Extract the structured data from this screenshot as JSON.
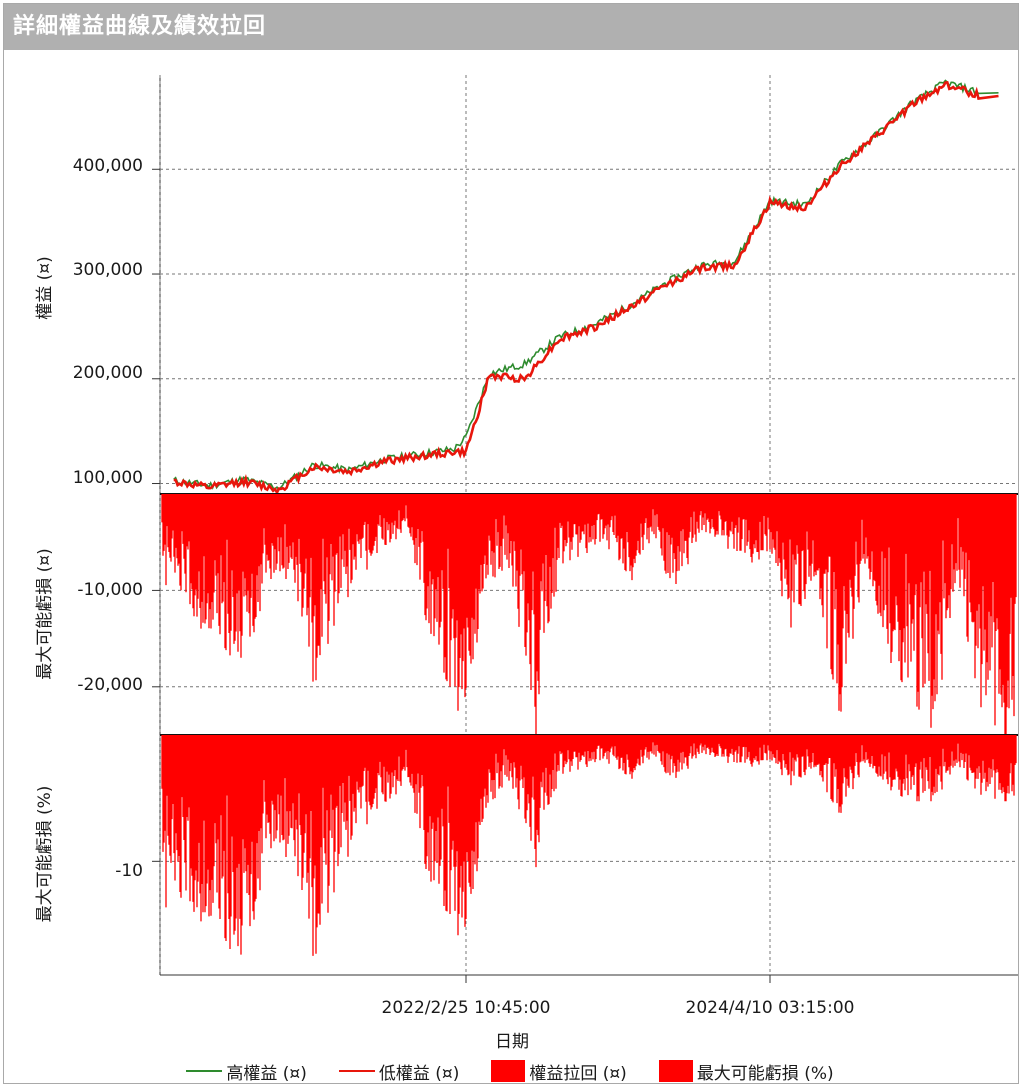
{
  "title": "詳細權益曲線及績效拉回",
  "colors": {
    "high": "#2e8b2e",
    "low": "#e8160c",
    "drawdown": "#ff0000",
    "titlebar": "#b0b0b0"
  },
  "x_axis": {
    "label": "日期",
    "ticks": [
      "2022/2/25 10:45:00",
      "2024/4/10 03:15:00"
    ]
  },
  "panels": {
    "equity": {
      "ylabel": "權益 (¤)",
      "ticks": [
        "100,000",
        "200,000",
        "300,000",
        "400,000"
      ]
    },
    "drawdown_abs": {
      "ylabel": "最大可能虧損 (¤)",
      "ticks": [
        "-10,000",
        "-20,000"
      ]
    },
    "drawdown_pct": {
      "ylabel": "最大可能虧損 (%)",
      "ticks": [
        "-10"
      ]
    }
  },
  "legend": [
    {
      "label": "高權益 (¤)",
      "kind": "line",
      "color": "#2e8b2e"
    },
    {
      "label": "低權益 (¤)",
      "kind": "line",
      "color": "#e8160c"
    },
    {
      "label": "權益拉回 (¤)",
      "kind": "box",
      "color": "#ff0000"
    },
    {
      "label": "最大可能虧損 (%)",
      "kind": "box",
      "color": "#ff0000"
    }
  ],
  "chart_data": [
    {
      "type": "line",
      "title": "詳細權益曲線及績效拉回",
      "xlabel": "日期",
      "ylabel": "權益 (¤)",
      "xlim": [
        "2020/1/1",
        "2026/1/1"
      ],
      "ylim": [
        90000,
        490000
      ],
      "x_ticks": [
        "2022/2/25 10:45:00",
        "2024/4/10 03:15:00"
      ],
      "y_ticks": [
        100000,
        200000,
        300000,
        400000
      ],
      "series": [
        {
          "name": "高權益 (¤)",
          "color": "#2e8b2e",
          "x": [
            "2020/1",
            "2020/4",
            "2020/7",
            "2020/10",
            "2021/1",
            "2021/4",
            "2021/7",
            "2021/10",
            "2022/1",
            "2022/2",
            "2022/4",
            "2022/7",
            "2022/10",
            "2023/1",
            "2023/4",
            "2023/7",
            "2023/10",
            "2024/1",
            "2024/4",
            "2024/7",
            "2024/10",
            "2025/1",
            "2025/4",
            "2025/7",
            "2025/10"
          ],
          "values": [
            103000,
            98000,
            104000,
            96000,
            118000,
            113000,
            123000,
            128000,
            133000,
            144000,
            205000,
            214000,
            240000,
            252000,
            270000,
            291000,
            308000,
            312000,
            370000,
            366000,
            405000,
            432000,
            462000,
            483000,
            473000
          ]
        },
        {
          "name": "低權益 (¤)",
          "color": "#e8160c",
          "x": [
            "2020/1",
            "2020/4",
            "2020/7",
            "2020/10",
            "2021/1",
            "2021/4",
            "2021/7",
            "2021/10",
            "2022/1",
            "2022/2",
            "2022/4",
            "2022/7",
            "2022/10",
            "2023/1",
            "2023/4",
            "2023/7",
            "2023/10",
            "2024/1",
            "2024/4",
            "2024/7",
            "2024/10",
            "2025/1",
            "2025/4",
            "2025/7",
            "2025/10"
          ],
          "values": [
            102000,
            96000,
            102000,
            94000,
            116000,
            111000,
            121000,
            126000,
            130000,
            130000,
            203000,
            200000,
            238000,
            249000,
            268000,
            289000,
            305000,
            309000,
            368000,
            363000,
            403000,
            430000,
            460000,
            481000,
            470000
          ]
        }
      ]
    },
    {
      "type": "area",
      "ylabel": "最大可能虧損 (¤)",
      "ylim": [
        -25000,
        0
      ],
      "y_ticks": [
        -10000,
        -20000
      ],
      "series": [
        {
          "name": "權益拉回 (¤)",
          "color": "#ff0000",
          "x": [
            "2020/1",
            "2020/3",
            "2020/5",
            "2020/7",
            "2020/9",
            "2020/11",
            "2021/1",
            "2021/3",
            "2021/5",
            "2021/7",
            "2021/9",
            "2021/11",
            "2022/1",
            "2022/2",
            "2022/4",
            "2022/6",
            "2022/8",
            "2022/10",
            "2022/12",
            "2023/2",
            "2023/4",
            "2023/6",
            "2023/8",
            "2023/10",
            "2023/12",
            "2024/2",
            "2024/4",
            "2024/6",
            "2024/8",
            "2024/10",
            "2024/12",
            "2025/2",
            "2025/4",
            "2025/6",
            "2025/8",
            "2025/10",
            "2025/12"
          ],
          "values": [
            -9000,
            -14000,
            -17000,
            -18500,
            -10000,
            -8000,
            -19000,
            -12000,
            -8000,
            -6000,
            -3000,
            -15000,
            -23000,
            -23500,
            -8000,
            -9000,
            -24500,
            -7000,
            -6000,
            -5000,
            -9000,
            -4000,
            -11000,
            -4000,
            -5000,
            -7000,
            -6000,
            -14000,
            -10000,
            -22000,
            -8000,
            -16000,
            -20000,
            -23500,
            -9000,
            -21000,
            -24000
          ]
        }
      ]
    },
    {
      "type": "area",
      "ylabel": "最大可能虧損 (%)",
      "ylim": [
        -19,
        0
      ],
      "y_ticks": [
        -10
      ],
      "series": [
        {
          "name": "最大可能虧損 (%)",
          "color": "#ff0000",
          "x": [
            "2020/1",
            "2020/3",
            "2020/5",
            "2020/7",
            "2020/9",
            "2020/11",
            "2021/1",
            "2021/3",
            "2021/5",
            "2021/7",
            "2021/9",
            "2021/11",
            "2022/1",
            "2022/2",
            "2022/4",
            "2022/6",
            "2022/8",
            "2022/10",
            "2022/12",
            "2023/2",
            "2023/4",
            "2023/6",
            "2023/8",
            "2023/10",
            "2023/12",
            "2024/2",
            "2024/4",
            "2024/6",
            "2024/8",
            "2024/10",
            "2024/12",
            "2025/2",
            "2025/4",
            "2025/6",
            "2025/8",
            "2025/10",
            "2025/12"
          ],
          "values": [
            -13000,
            -15000,
            -17000,
            -19000,
            -10000,
            -9000,
            -17000,
            -11000,
            -7000,
            -6000,
            -3000,
            -12000,
            -16000,
            -17000,
            -5000,
            -4000,
            -10000,
            -3000,
            -2500,
            -2000,
            -3500,
            -1500,
            -4000,
            -1500,
            -2000,
            -2500,
            -2000,
            -4000,
            -3000,
            -6000,
            -2500,
            -4000,
            -5000,
            -5000,
            -2500,
            -4500,
            -5000
          ]
        }
      ]
    }
  ]
}
